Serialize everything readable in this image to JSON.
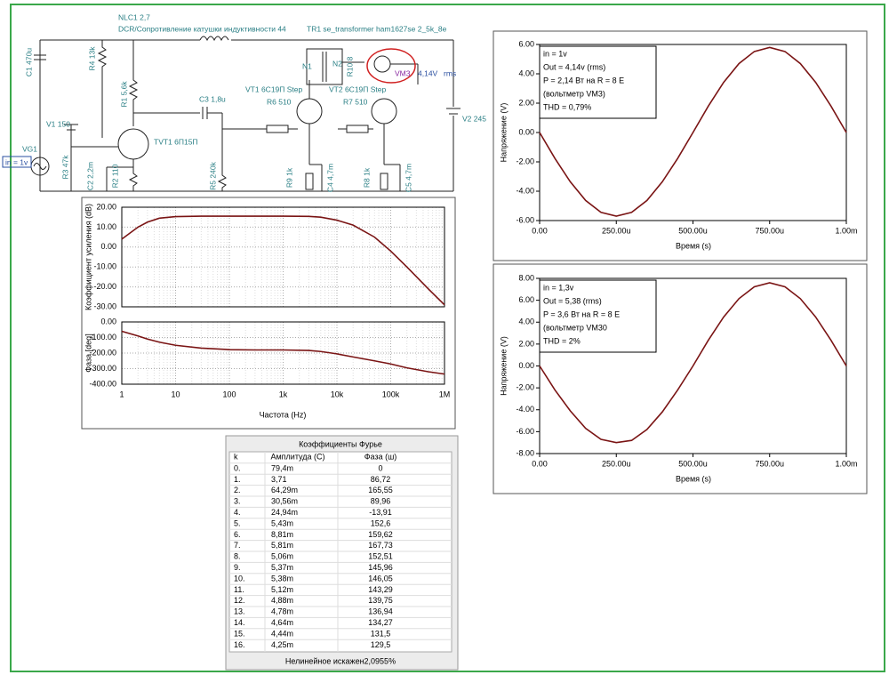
{
  "schematic": {
    "labels": [
      "NLC1 2,7",
      "DCR/Сопротивление катушки индуктивности 44",
      "TR1 se_transformer ham1627se 2_5k_8e",
      "C1 470u",
      "R4 13k",
      "R1 5,6k",
      "C3 1,8u",
      "VT1 6С19П Step",
      "R6 510",
      "R7 510",
      "VT2 6С19П Step",
      "N1",
      "N2",
      "R10 8",
      "VM3",
      "4,14V",
      "rms",
      "V2 245",
      "V1 150",
      "VG1",
      "in = 1v",
      "TVT1 6П15П",
      "R3 47k",
      "C2 2,2m",
      "R2 110",
      "R5 240k",
      "R9 1k",
      "C4 4,7m",
      "R8 1k",
      "C5 4,7m"
    ]
  },
  "chart_data": [
    {
      "type": "bode",
      "x_label": "Частота (Hz)",
      "log_x": true,
      "grid": true,
      "color": "#7a1414",
      "x": [
        1,
        2,
        3,
        5,
        10,
        30,
        100,
        300,
        1000,
        3000,
        5000,
        10000,
        20000,
        50000,
        100000,
        200000,
        500000,
        1000000
      ],
      "xlim": [
        1,
        1000000
      ],
      "xticks": [
        1,
        10,
        100,
        {
          "value": 1000,
          "label": "1k"
        },
        {
          "value": 10000,
          "label": "10k"
        },
        {
          "value": 100000,
          "label": "100k"
        },
        {
          "value": 1000000,
          "label": "1M"
        }
      ],
      "panels": [
        {
          "y_label": "Коэффициент усиления (dB)",
          "ylim": [
            -30,
            20
          ],
          "yticks": [
            {
              "value": 20,
              "label": "20.00"
            },
            {
              "value": 10,
              "label": "10.00"
            },
            {
              "value": 0,
              "label": "0.00"
            },
            {
              "value": -10,
              "label": "-10.00"
            },
            {
              "value": -20,
              "label": "-20.00"
            },
            {
              "value": -30,
              "label": "-30.00"
            }
          ],
          "values": [
            4,
            10,
            12.5,
            14.5,
            15.3,
            15.5,
            15.5,
            15.5,
            15.5,
            15.4,
            15,
            13.5,
            11,
            5,
            -2,
            -10,
            -21,
            -29
          ]
        },
        {
          "y_label": "Фаза [deg]",
          "ylim": [
            -400,
            0
          ],
          "yticks": [
            {
              "value": 0,
              "label": "0.00"
            },
            {
              "value": -100,
              "label": "-100.00"
            },
            {
              "value": -200,
              "label": "-200.00"
            },
            {
              "value": -300,
              "label": "-300.00"
            },
            {
              "value": -400,
              "label": "-400.00"
            }
          ],
          "values": [
            -60,
            -90,
            -110,
            -130,
            -150,
            -168,
            -178,
            -180,
            -180,
            -183,
            -190,
            -205,
            -225,
            -250,
            -270,
            -295,
            -320,
            -335
          ]
        }
      ]
    },
    {
      "type": "line",
      "x_label": "Время (s)",
      "y_label": "Напряжение (V)",
      "grid": false,
      "color": "#7a1414",
      "annotation": [
        "in = 1v",
        "Out = 4,14v (rms)",
        "P = 2,14 Вт на R = 8 E",
        "(вольтметр VM3)",
        "THD = 0,79%"
      ],
      "x": [
        0,
        5e-05,
        0.0001,
        0.00015,
        0.0002,
        0.00025,
        0.0003,
        0.00035,
        0.0004,
        0.00045,
        0.0005,
        0.00055,
        0.0006,
        0.00065,
        0.0007,
        0.00075,
        0.0008,
        0.00085,
        0.0009,
        0.00095,
        0.001
      ],
      "values": [
        0,
        -1.77,
        -3.36,
        -4.63,
        -5.44,
        -5.7,
        -5.44,
        -4.63,
        -3.36,
        -1.77,
        0,
        1.8,
        3.42,
        4.7,
        5.52,
        5.8,
        5.52,
        4.7,
        3.42,
        1.8,
        0
      ],
      "xlim": [
        0,
        0.001
      ],
      "xticks": [
        {
          "value": 0,
          "label": "0.00"
        },
        {
          "value": 0.00025,
          "label": "250.00u"
        },
        {
          "value": 0.0005,
          "label": "500.00u"
        },
        {
          "value": 0.00075,
          "label": "750.00u"
        },
        {
          "value": 0.001,
          "label": "1.00m"
        }
      ],
      "ylim": [
        -6,
        6
      ],
      "yticks": [
        {
          "value": 6,
          "label": "6.00"
        },
        {
          "value": 4,
          "label": "4.00"
        },
        {
          "value": 2,
          "label": "2.00"
        },
        {
          "value": 0,
          "label": "0.00"
        },
        {
          "value": -2,
          "label": "-2.00"
        },
        {
          "value": -4,
          "label": "-4.00"
        },
        {
          "value": -6,
          "label": "-6.00"
        }
      ]
    },
    {
      "type": "line",
      "x_label": "Время (s)",
      "y_label": "Напряжение (V)",
      "grid": false,
      "color": "#7a1414",
      "annotation": [
        "in = 1,3v",
        "Out = 5,38 (rms)",
        "P = 3,6 Вт на R = 8 E",
        "(вольтметр VM30",
        "THD = 2%"
      ],
      "x": [
        0,
        5e-05,
        0.0001,
        0.00015,
        0.0002,
        0.00025,
        0.0003,
        0.00035,
        0.0004,
        0.00045,
        0.0005,
        0.00055,
        0.0006,
        0.00065,
        0.0007,
        0.00075,
        0.0008,
        0.00085,
        0.0009,
        0.00095,
        0.001
      ],
      "values": [
        0,
        -2.2,
        -4.1,
        -5.7,
        -6.7,
        -7.0,
        -6.8,
        -5.8,
        -4.2,
        -2.2,
        0,
        2.35,
        4.47,
        6.15,
        7.23,
        7.6,
        7.23,
        6.15,
        4.47,
        2.35,
        0
      ],
      "xlim": [
        0,
        0.001
      ],
      "xticks": [
        {
          "value": 0,
          "label": "0.00"
        },
        {
          "value": 0.00025,
          "label": "250.00u"
        },
        {
          "value": 0.0005,
          "label": "500.00u"
        },
        {
          "value": 0.00075,
          "label": "750.00u"
        },
        {
          "value": 0.001,
          "label": "1.00m"
        }
      ],
      "ylim": [
        -8,
        8
      ],
      "yticks": [
        {
          "value": 8,
          "label": "8.00"
        },
        {
          "value": 6,
          "label": "6.00"
        },
        {
          "value": 4,
          "label": "4.00"
        },
        {
          "value": 2,
          "label": "2.00"
        },
        {
          "value": 0,
          "label": "0.00"
        },
        {
          "value": -2,
          "label": "-2.00"
        },
        {
          "value": -4,
          "label": "-4.00"
        },
        {
          "value": -6,
          "label": "-6.00"
        },
        {
          "value": -8,
          "label": "-8.00"
        }
      ]
    }
  ],
  "fourier_table": {
    "title": "Коэффициенты Фурье",
    "headers": [
      "k",
      "Амплитуда (С)",
      "Фаза (ш)"
    ],
    "rows": [
      [
        "0.",
        "79,4m",
        "0"
      ],
      [
        "1.",
        "3,71",
        "86,72"
      ],
      [
        "2.",
        "64,29m",
        "165,55"
      ],
      [
        "3.",
        "30,56m",
        "89,96"
      ],
      [
        "4.",
        "24,94m",
        "-13,91"
      ],
      [
        "5.",
        "5,43m",
        "152,6"
      ],
      [
        "6.",
        "8,81m",
        "159,62"
      ],
      [
        "7.",
        "5,81m",
        "167,73"
      ],
      [
        "8.",
        "5,06m",
        "152,51"
      ],
      [
        "9.",
        "5,37m",
        "145,96"
      ],
      [
        "10.",
        "5,38m",
        "146,05"
      ],
      [
        "11.",
        "5,12m",
        "143,29"
      ],
      [
        "12.",
        "4,88m",
        "139,75"
      ],
      [
        "13.",
        "4,78m",
        "136,94"
      ],
      [
        "14.",
        "4,64m",
        "134,27"
      ],
      [
        "15.",
        "4,44m",
        "131,5"
      ],
      [
        "16.",
        "4,25m",
        "129,5"
      ]
    ],
    "footer": "Нелинейное искажен2,0955%"
  }
}
